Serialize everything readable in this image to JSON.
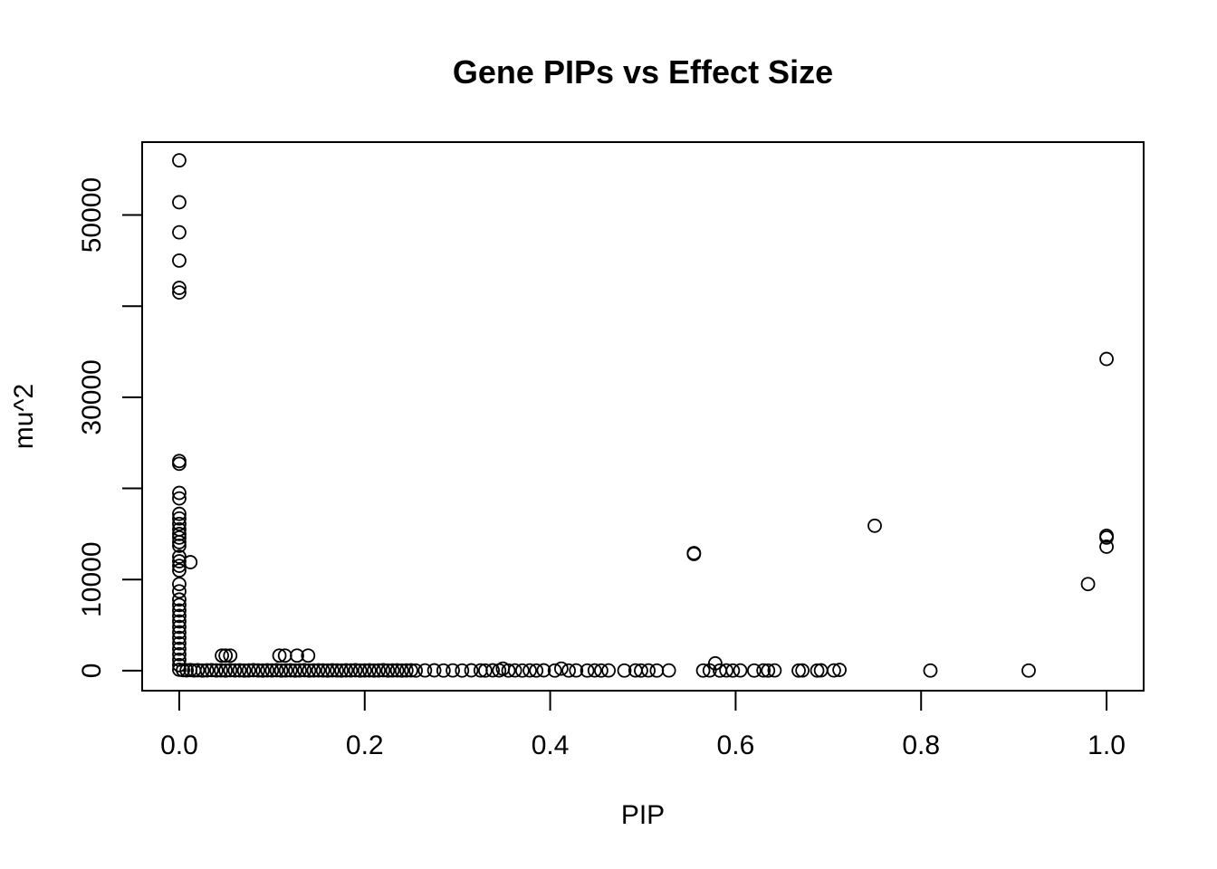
{
  "chart_data": {
    "type": "scatter",
    "title": "Gene PIPs vs Effect Size",
    "xlabel": "PIP",
    "ylabel": "mu^2",
    "xlim": [
      -0.04,
      1.04
    ],
    "ylim": [
      -2200,
      58000
    ],
    "x_ticks": [
      0.0,
      0.2,
      0.4,
      0.6,
      0.8,
      1.0
    ],
    "x_tick_labels": [
      "0.0",
      "0.2",
      "0.4",
      "0.6",
      "0.8",
      "1.0"
    ],
    "y_ticks": [
      0,
      10000,
      20000,
      30000,
      40000,
      50000
    ],
    "y_tick_labels": [
      "0",
      "10000",
      "",
      "30000",
      "",
      "50000"
    ],
    "grid": false,
    "legend": "none",
    "marker": "open-circle",
    "series": [
      {
        "points": [
          [
            0.0,
            56000
          ],
          [
            0.0,
            51400
          ],
          [
            0.0,
            48100
          ],
          [
            0.0,
            45000
          ],
          [
            0.0,
            42000
          ],
          [
            0.0,
            41500
          ],
          [
            0.0,
            23000
          ],
          [
            0.0,
            22700
          ],
          [
            0.0,
            19500
          ],
          [
            0.0,
            18900
          ],
          [
            0.0,
            17200
          ],
          [
            0.0,
            16700
          ],
          [
            0.0,
            16100
          ],
          [
            0.0,
            15500
          ],
          [
            0.0,
            15000
          ],
          [
            0.0,
            14600
          ],
          [
            0.0,
            14100
          ],
          [
            0.0,
            13700
          ],
          [
            0.0,
            12500
          ],
          [
            0.0,
            12000
          ],
          [
            0.0,
            11500
          ],
          [
            0.0,
            11000
          ],
          [
            0.0,
            9500
          ],
          [
            0.0,
            8700
          ],
          [
            0.0,
            7800
          ],
          [
            0.0,
            7200
          ],
          [
            0.0,
            6600
          ],
          [
            0.0,
            6000
          ],
          [
            0.0,
            5400
          ],
          [
            0.0,
            4800
          ],
          [
            0.0,
            4200
          ],
          [
            0.0,
            3600
          ],
          [
            0.0,
            3000
          ],
          [
            0.0,
            2400
          ],
          [
            0.0,
            1800
          ],
          [
            0.0,
            1200
          ],
          [
            0.0,
            600
          ],
          [
            0.0,
            100
          ],
          [
            0.012,
            11900
          ],
          [
            0.046,
            1650
          ],
          [
            0.05,
            1650
          ],
          [
            0.055,
            1650
          ],
          [
            0.108,
            1650
          ],
          [
            0.114,
            1650
          ],
          [
            0.127,
            1650
          ],
          [
            0.139,
            1650
          ],
          [
            0.004,
            50
          ],
          [
            0.008,
            30
          ],
          [
            0.012,
            60
          ],
          [
            0.016,
            20
          ],
          [
            0.02,
            40
          ],
          [
            0.025,
            10
          ],
          [
            0.03,
            30
          ],
          [
            0.035,
            50
          ],
          [
            0.04,
            20
          ],
          [
            0.045,
            30
          ],
          [
            0.05,
            10
          ],
          [
            0.055,
            40
          ],
          [
            0.06,
            20
          ],
          [
            0.065,
            30
          ],
          [
            0.07,
            10
          ],
          [
            0.075,
            20
          ],
          [
            0.08,
            40
          ],
          [
            0.085,
            20
          ],
          [
            0.09,
            10
          ],
          [
            0.095,
            30
          ],
          [
            0.1,
            20
          ],
          [
            0.105,
            40
          ],
          [
            0.11,
            10
          ],
          [
            0.115,
            20
          ],
          [
            0.12,
            30
          ],
          [
            0.125,
            10
          ],
          [
            0.13,
            20
          ],
          [
            0.135,
            40
          ],
          [
            0.14,
            10
          ],
          [
            0.145,
            20
          ],
          [
            0.15,
            30
          ],
          [
            0.155,
            20
          ],
          [
            0.16,
            10
          ],
          [
            0.165,
            30
          ],
          [
            0.17,
            20
          ],
          [
            0.175,
            10
          ],
          [
            0.18,
            30
          ],
          [
            0.185,
            20
          ],
          [
            0.19,
            40
          ],
          [
            0.195,
            10
          ],
          [
            0.2,
            20
          ],
          [
            0.205,
            30
          ],
          [
            0.21,
            10
          ],
          [
            0.215,
            20
          ],
          [
            0.22,
            40
          ],
          [
            0.225,
            10
          ],
          [
            0.23,
            20
          ],
          [
            0.235,
            30
          ],
          [
            0.24,
            10
          ],
          [
            0.245,
            20
          ],
          [
            0.25,
            30
          ],
          [
            0.255,
            10
          ],
          [
            0.265,
            20
          ],
          [
            0.275,
            30
          ],
          [
            0.285,
            10
          ],
          [
            0.295,
            20
          ],
          [
            0.305,
            10
          ],
          [
            0.315,
            30
          ],
          [
            0.325,
            20
          ],
          [
            0.33,
            10
          ],
          [
            0.338,
            30
          ],
          [
            0.345,
            20
          ],
          [
            0.349,
            220
          ],
          [
            0.355,
            10
          ],
          [
            0.362,
            20
          ],
          [
            0.37,
            10
          ],
          [
            0.378,
            20
          ],
          [
            0.385,
            10
          ],
          [
            0.393,
            30
          ],
          [
            0.405,
            10
          ],
          [
            0.412,
            220
          ],
          [
            0.42,
            10
          ],
          [
            0.428,
            20
          ],
          [
            0.44,
            10
          ],
          [
            0.448,
            20
          ],
          [
            0.455,
            10
          ],
          [
            0.463,
            20
          ],
          [
            0.48,
            10
          ],
          [
            0.492,
            20
          ],
          [
            0.498,
            10
          ],
          [
            0.506,
            20
          ],
          [
            0.515,
            10
          ],
          [
            0.528,
            20
          ],
          [
            0.555,
            12800
          ],
          [
            0.555,
            12900
          ],
          [
            0.565,
            10
          ],
          [
            0.572,
            20
          ],
          [
            0.578,
            800
          ],
          [
            0.583,
            10
          ],
          [
            0.59,
            20
          ],
          [
            0.597,
            10
          ],
          [
            0.605,
            20
          ],
          [
            0.62,
            10
          ],
          [
            0.63,
            20
          ],
          [
            0.635,
            10
          ],
          [
            0.642,
            20
          ],
          [
            0.668,
            10
          ],
          [
            0.672,
            20
          ],
          [
            0.688,
            10
          ],
          [
            0.692,
            30
          ],
          [
            0.706,
            20
          ],
          [
            0.712,
            80
          ],
          [
            0.75,
            15900
          ],
          [
            0.81,
            10
          ],
          [
            0.916,
            10
          ],
          [
            0.98,
            9500
          ],
          [
            1.0,
            34200
          ],
          [
            1.0,
            14800
          ],
          [
            1.0,
            14600
          ],
          [
            1.0,
            13600
          ]
        ]
      }
    ]
  }
}
